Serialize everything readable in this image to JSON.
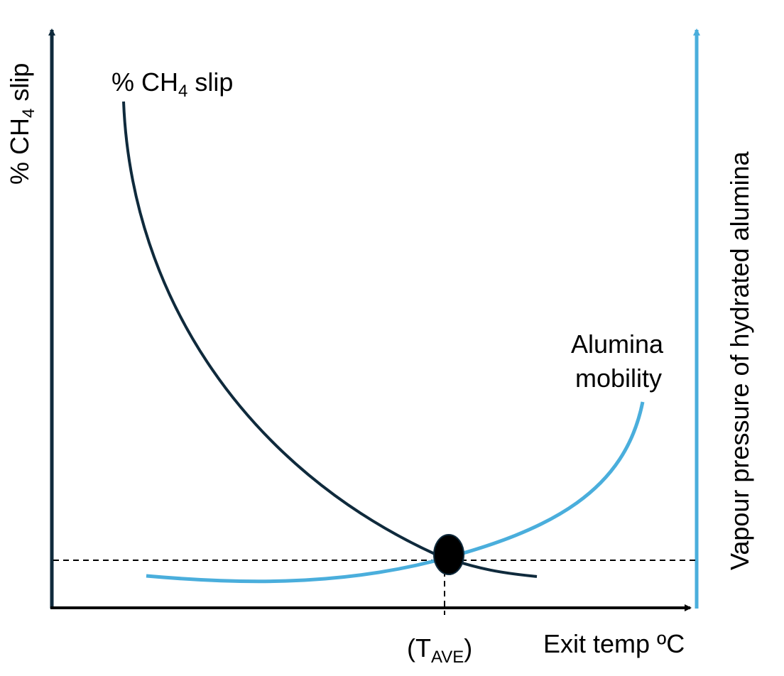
{
  "colors": {
    "dark": "#0f2a3c",
    "light": "#4aaedc",
    "axis": "#000000"
  },
  "axes": {
    "left_label": {
      "prefix": "% CH",
      "sub": "4",
      "suffix": " slip"
    },
    "right_label": "Vapour pressure of hydrated alumina",
    "x_label": "Exit temp ºC"
  },
  "curves": {
    "ch4_label": {
      "prefix": "% CH",
      "sub": "4",
      "suffix": " slip"
    },
    "alumina_label_line1": "Alumina",
    "alumina_label_line2": "mobility"
  },
  "marker": {
    "label_open": "(T",
    "label_sub": "AVE",
    "label_close": ")"
  }
}
